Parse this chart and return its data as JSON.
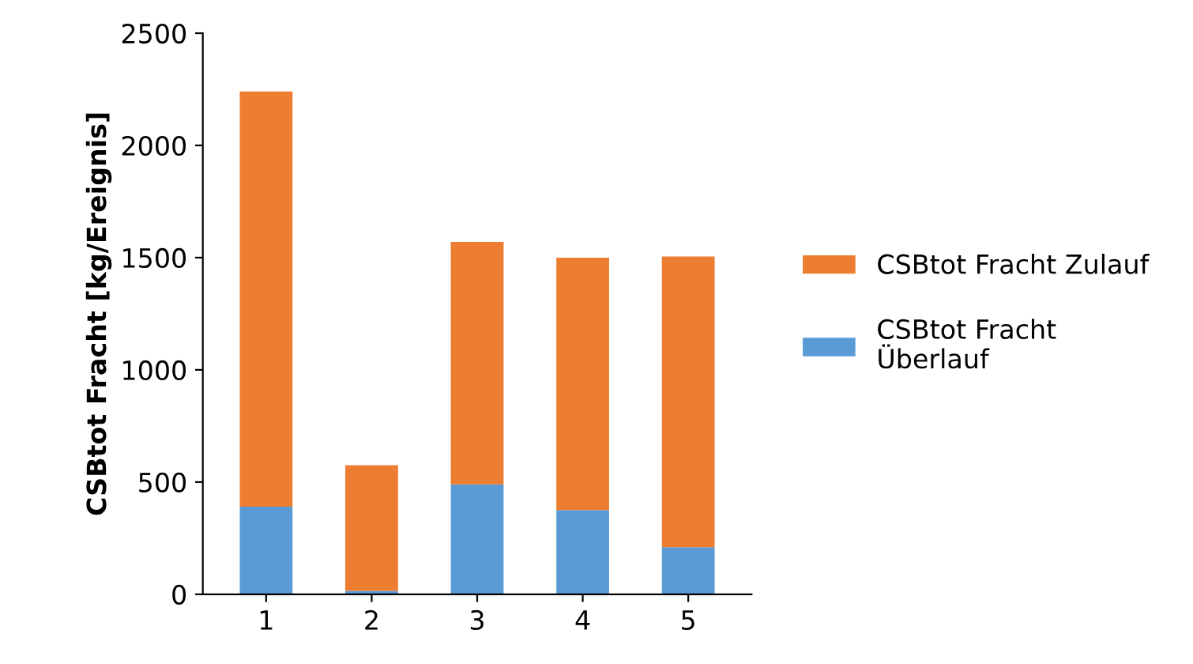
{
  "chart_data": {
    "type": "bar",
    "stacked": true,
    "ylabel": "CSBtot Fracht [kg/Ereignis]",
    "categories": [
      "1",
      "2",
      "3",
      "4",
      "5"
    ],
    "series": [
      {
        "name": "CSBtot Fracht\nÜberlauf",
        "color": "#5b9bd5",
        "values": [
          390,
          15,
          490,
          375,
          210
        ]
      },
      {
        "name": "CSBtot Fracht Zulauf",
        "color": "#ed7d31",
        "values": [
          1850,
          560,
          1080,
          1125,
          1295
        ]
      }
    ],
    "ylim": [
      0,
      2500
    ],
    "yticks": [
      0,
      500,
      1000,
      1500,
      2000,
      2500
    ],
    "grid": false,
    "legend": "right"
  }
}
